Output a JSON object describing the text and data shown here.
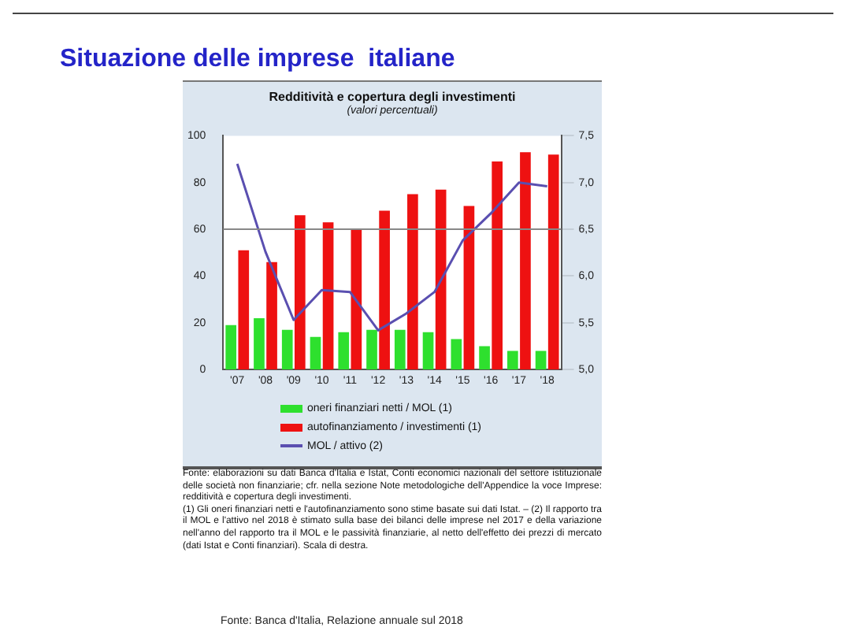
{
  "chart_data": {
    "type": "bar",
    "title": "Situazione delle imprese  italiane",
    "subtitle": "Redditività e copertura degli investimenti",
    "categories": [
      "'07",
      "'08",
      "'09",
      "'10",
      "'11",
      "'12",
      "'13",
      "'14",
      "'15",
      "'16",
      "'17",
      "'18"
    ],
    "series": [
      {
        "name": "oneri finanziari netti / MOL (1)",
        "color": "#2ee02e",
        "values": [
          19,
          22,
          17,
          14,
          16,
          17,
          17,
          16,
          13,
          10,
          8,
          8
        ]
      },
      {
        "name": "autofinanziamento / investimenti (1)",
        "color": "#ee1111",
        "values": [
          51,
          46,
          66,
          63,
          60,
          68,
          75,
          77,
          70,
          89,
          93,
          92
        ]
      },
      {
        "name": "MOL / attivo (2)",
        "type": "line",
        "axis": "y2",
        "color": "#5a4fb0",
        "values": [
          7.2,
          6.26,
          5.53,
          5.85,
          5.83,
          5.42,
          5.6,
          5.83,
          6.38,
          6.67,
          7.0,
          6.96
        ]
      }
    ],
    "ylim": [
      0,
      100
    ],
    "yticks": [
      0,
      20,
      40,
      60,
      80,
      100
    ],
    "y2lim": [
      5.0,
      7.5
    ],
    "y2ticks": [
      {
        "value": 5.0,
        "label": "5,0"
      },
      {
        "value": 5.5,
        "label": "5,5"
      },
      {
        "value": 6.0,
        "label": "6,0"
      },
      {
        "value": 6.5,
        "label": "6,5"
      },
      {
        "value": 7.0,
        "label": "7,0"
      },
      {
        "value": 7.5,
        "label": "7,5"
      }
    ],
    "ref_lines": [
      {
        "axis": "y",
        "value": 60,
        "color": "#888888"
      }
    ],
    "marker": "none",
    "line_style": "solid",
    "legend": "bottom",
    "grid": false,
    "annotations": [
      "(valori percentuali)",
      "Fonte: elaborazioni su dati Banca d'Italia e Istat, Conti economici nazionali del settore istituzionale delle società non finanziarie; cfr. nella sezione Note metodologiche dell'Appendice la voce Imprese: redditività e copertura degli investimenti.",
      "(1) Gli oneri finanziari netti e l'autofinanziamento sono stime basate sui dati Istat. – (2) Il rapporto tra il MOL e l'attivo nel 2018 è stimato sulla base dei bilanci delle imprese nel 2017 e della variazione nell'anno del rapporto tra il MOL e le passività finanziarie, al netto dell'effetto dei prezzi di mercato (dati Istat e Conti finanziari). Scala di destra.",
      "Fonte: Banca d'Italia, Relazione annuale sul 2018"
    ]
  }
}
